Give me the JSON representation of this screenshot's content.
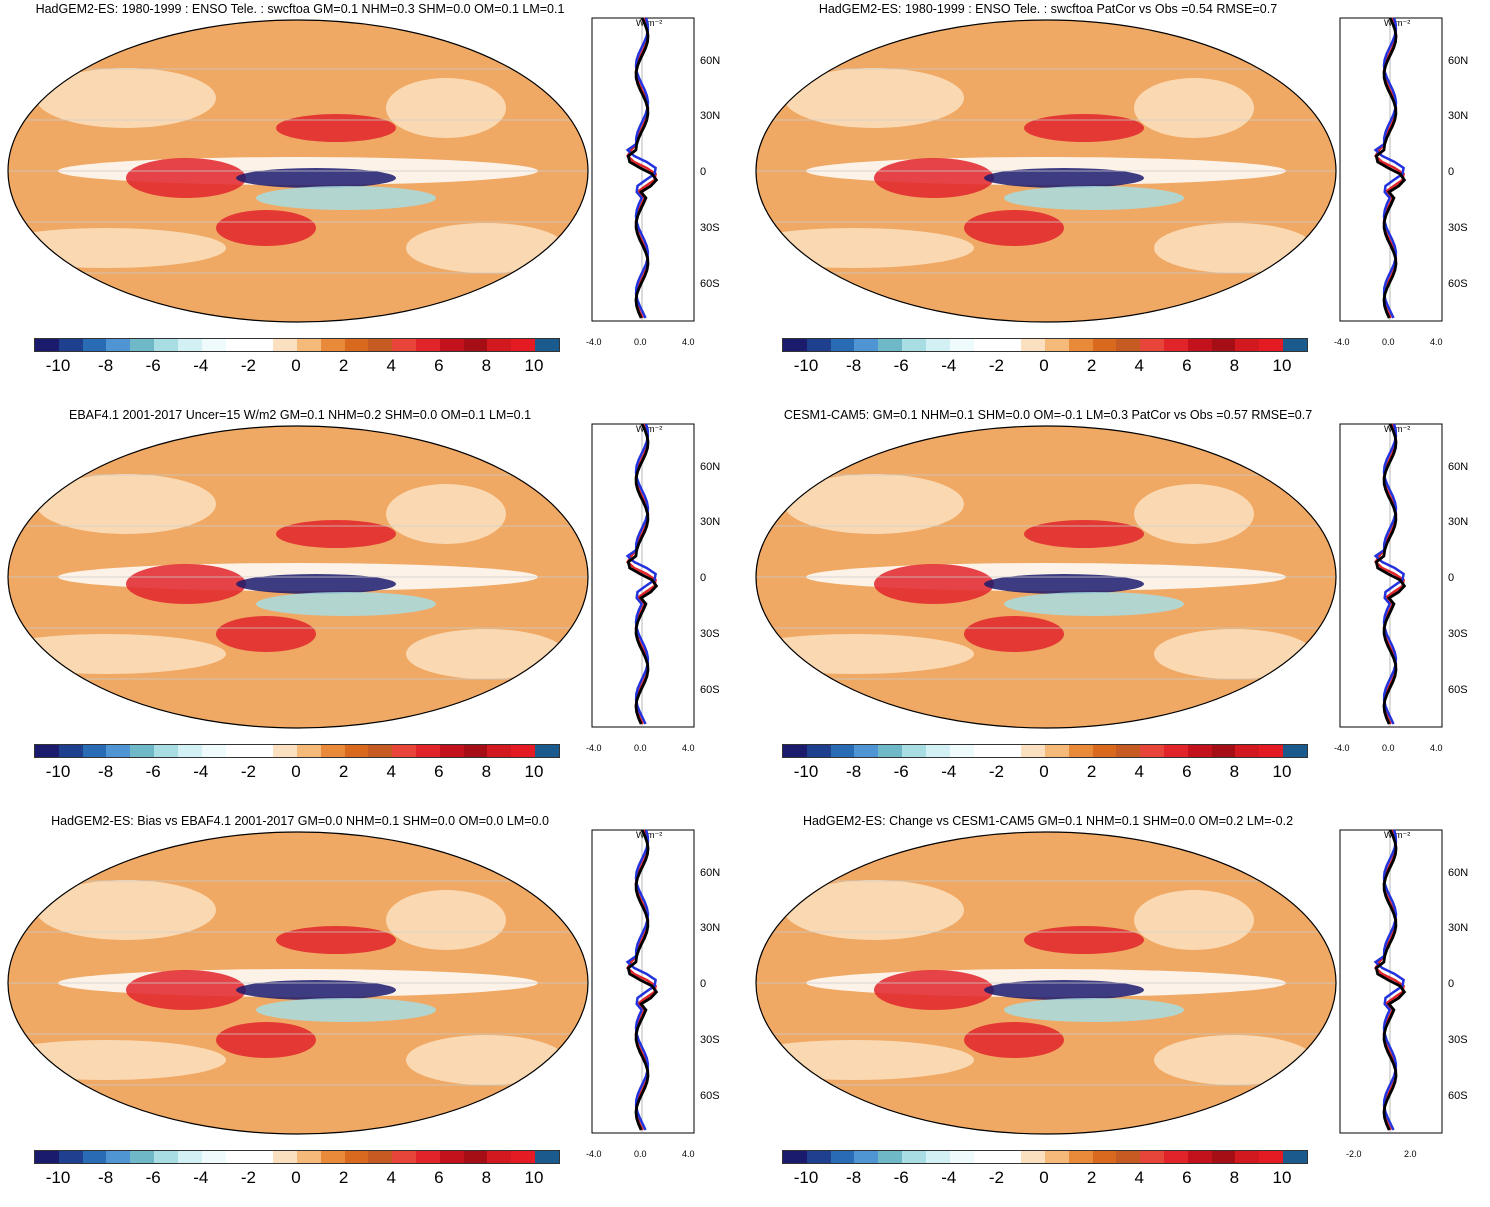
{
  "panels": [
    {
      "title": "HadGEM2-ES: 1980-1999 : ENSO Tele. : swcftoa GM=0.1 NHM=0.3 SHM=0.0 OM=0.1 LM=0.1",
      "xticks": [
        "-4.0",
        "0.0",
        "4.0"
      ]
    },
    {
      "title": "HadGEM2-ES: 1980-1999 : ENSO Tele. : swcftoa PatCor vs Obs =0.54 RMSE=0.7",
      "xticks": [
        "-4.0",
        "0.0",
        "4.0"
      ]
    },
    {
      "title": "EBAF4.1 2001-2017 Uncer=15 W/m2 GM=0.1 NHM=0.2 SHM=0.0 OM=0.1 LM=0.1",
      "xticks": [
        "-4.0",
        "0.0",
        "4.0"
      ]
    },
    {
      "title": "CESM1-CAM5: GM=0.1 NHM=0.1 SHM=0.0 OM=-0.1 LM=0.3 PatCor vs Obs =0.57 RMSE=0.7",
      "xticks": [
        "-4.0",
        "0.0",
        "4.0"
      ]
    },
    {
      "title": "HadGEM2-ES: Bias vs EBAF4.1 2001-2017 GM=0.0 NHM=0.1 SHM=0.0 OM=0.0 LM=0.0",
      "xticks": [
        "-4.0",
        "0.0",
        "4.0"
      ]
    },
    {
      "title": "HadGEM2-ES: Change vs CESM1-CAM5 GM=0.1 NHM=0.1 SHM=0.0 OM=0.2 LM=-0.2",
      "xticks": [
        "-2.0",
        "2.0"
      ]
    }
  ],
  "profile_units": "W m⁻²",
  "lat_labels": [
    "60N",
    "30N",
    "0",
    "30S",
    "60S"
  ],
  "colorbar": {
    "ticks": [
      "-10",
      "-8",
      "-6",
      "-4",
      "-2",
      "0",
      "2",
      "4",
      "6",
      "8",
      "10"
    ],
    "colors": [
      "#1b1b6e",
      "#1f3f8f",
      "#2a6bb5",
      "#4f95d4",
      "#6fb8c8",
      "#a7dde3",
      "#d3f0f5",
      "#eefafc",
      "#ffffff",
      "#ffffff",
      "#fbe0c0",
      "#f5b97a",
      "#e98a3a",
      "#d8691f",
      "#c55a22",
      "#e8453a",
      "#e0242a",
      "#c4121c",
      "#a40e14",
      "#d31920",
      "#e41b22",
      "#1a5a8c"
    ]
  }
}
